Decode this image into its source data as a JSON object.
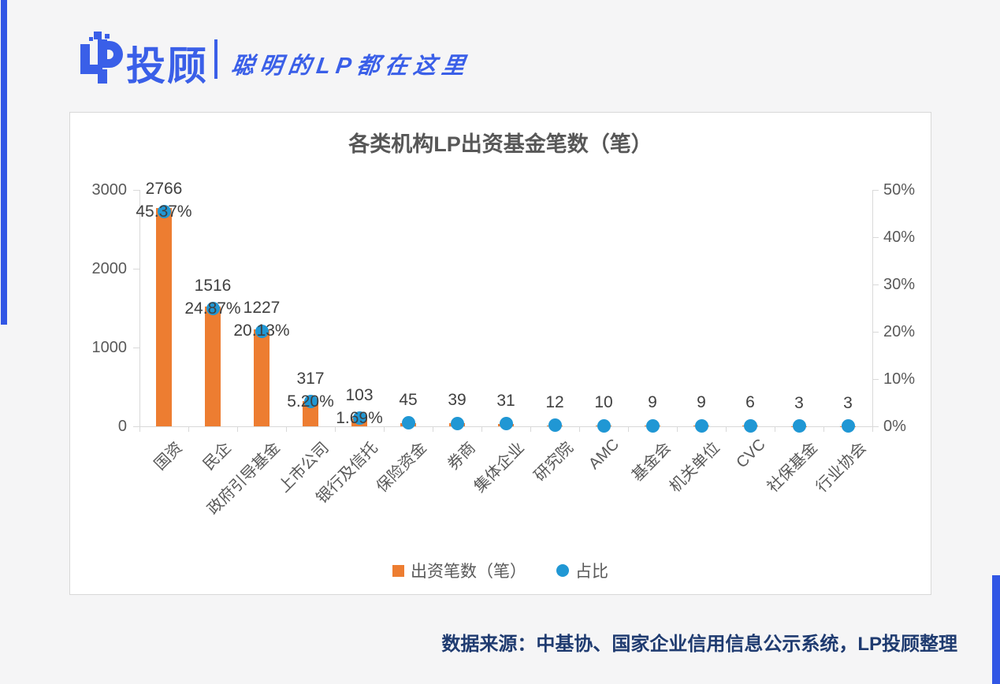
{
  "brand": {
    "logo_text": "投顾",
    "slogan": "聪明的LP都在这里",
    "colors": {
      "brand_blue": "#3a5fe8",
      "accent_bar": "#3156e5"
    }
  },
  "chart_data": {
    "type": "combo-bar-scatter",
    "title": "各类机构LP出资基金笔数（笔）",
    "categories": [
      "国资",
      "民企",
      "政府引导基金",
      "上市公司",
      "银行及信托",
      "保险资金",
      "券商",
      "集体企业",
      "研究院",
      "AMC",
      "基金会",
      "机关单位",
      "CVC",
      "社保基金",
      "行业协会"
    ],
    "series": [
      {
        "name": "出资笔数（笔）",
        "type": "bar",
        "color": "#ED7D31",
        "values": [
          2766,
          1516,
          1227,
          317,
          103,
          45,
          39,
          31,
          12,
          10,
          9,
          9,
          6,
          3,
          3
        ]
      },
      {
        "name": "占比",
        "type": "scatter",
        "color": "#2097D4",
        "values_pct": [
          45.37,
          24.87,
          20.13,
          5.2,
          1.69,
          0.74,
          0.64,
          0.51,
          0.2,
          0.16,
          0.15,
          0.15,
          0.1,
          0.05,
          0.05
        ],
        "labels": [
          "45.37%",
          "24.87%",
          "20.13%",
          "5.20%",
          "1.69%",
          "",
          "",
          "",
          "",
          "",
          "",
          "",
          "",
          "",
          ""
        ]
      }
    ],
    "left_axis": {
      "min": 0,
      "max": 3000,
      "ticks": [
        "0",
        "1000",
        "2000",
        "3000"
      ]
    },
    "right_axis": {
      "min": 0,
      "max": 50,
      "ticks": [
        "0%",
        "10%",
        "20%",
        "30%",
        "40%",
        "50%"
      ]
    },
    "legend_position": "bottom",
    "grid": false,
    "axis_color": "#d9d9d9",
    "text_color": "#595959",
    "label_color": "#404040"
  },
  "footer": {
    "source_text": "数据来源：中基协、国家企业信用信息公示系统，LP投顾整理"
  }
}
